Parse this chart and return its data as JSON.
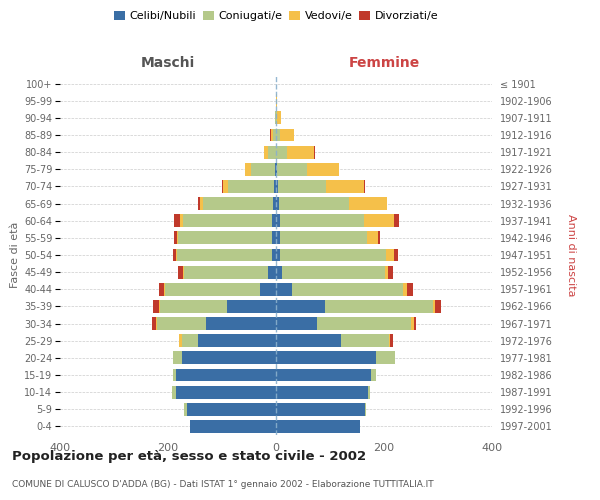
{
  "age_groups": [
    "100+",
    "95-99",
    "90-94",
    "85-89",
    "80-84",
    "75-79",
    "70-74",
    "65-69",
    "60-64",
    "55-59",
    "50-54",
    "45-49",
    "40-44",
    "35-39",
    "30-34",
    "25-29",
    "20-24",
    "15-19",
    "10-14",
    "5-9",
    "0-4"
  ],
  "birth_years": [
    "≤ 1901",
    "1902-1906",
    "1907-1911",
    "1912-1916",
    "1917-1921",
    "1922-1926",
    "1927-1931",
    "1932-1936",
    "1937-1941",
    "1942-1946",
    "1947-1951",
    "1952-1956",
    "1957-1961",
    "1962-1966",
    "1967-1971",
    "1972-1976",
    "1977-1981",
    "1982-1986",
    "1987-1991",
    "1992-1996",
    "1997-2001"
  ],
  "males": {
    "celibi": [
      0,
      0,
      0,
      0,
      0,
      2,
      3,
      5,
      8,
      7,
      8,
      15,
      30,
      90,
      130,
      145,
      175,
      185,
      185,
      165,
      160
    ],
    "coniugati": [
      0,
      0,
      2,
      5,
      15,
      45,
      85,
      130,
      165,
      175,
      175,
      155,
      175,
      125,
      90,
      30,
      15,
      5,
      8,
      5,
      0
    ],
    "vedovi": [
      0,
      0,
      0,
      5,
      8,
      10,
      10,
      5,
      5,
      2,
      2,
      2,
      2,
      2,
      2,
      5,
      0,
      0,
      0,
      0,
      0
    ],
    "divorziati": [
      0,
      0,
      0,
      2,
      0,
      0,
      2,
      5,
      10,
      5,
      5,
      10,
      10,
      10,
      8,
      0,
      0,
      0,
      0,
      0,
      0
    ]
  },
  "females": {
    "nubili": [
      0,
      0,
      0,
      0,
      0,
      2,
      3,
      5,
      8,
      8,
      8,
      12,
      30,
      90,
      75,
      120,
      185,
      175,
      170,
      165,
      155
    ],
    "coniugate": [
      0,
      0,
      2,
      8,
      20,
      55,
      90,
      130,
      155,
      160,
      195,
      190,
      205,
      200,
      175,
      90,
      35,
      10,
      5,
      2,
      0
    ],
    "vedove": [
      0,
      2,
      8,
      25,
      50,
      60,
      70,
      70,
      55,
      20,
      15,
      5,
      8,
      5,
      5,
      2,
      0,
      0,
      0,
      0,
      0
    ],
    "divorziate": [
      0,
      0,
      0,
      0,
      2,
      0,
      2,
      0,
      10,
      5,
      8,
      10,
      10,
      10,
      5,
      5,
      0,
      0,
      0,
      0,
      0
    ]
  },
  "colors": {
    "celibi": "#3a6ea5",
    "coniugati": "#b5c98a",
    "vedovi": "#f5c04a",
    "divorziati": "#c0392b"
  },
  "title": "Popolazione per età, sesso e stato civile - 2002",
  "subtitle": "COMUNE DI CALUSCO D'ADDA (BG) - Dati ISTAT 1° gennaio 2002 - Elaborazione TUTTITALIA.IT",
  "xlabel_left": "Maschi",
  "xlabel_right": "Femmine",
  "ylabel_left": "Fasce di età",
  "ylabel_right": "Anni di nascita",
  "xlim": 400,
  "legend_labels": [
    "Celibi/Nubili",
    "Coniugati/e",
    "Vedovi/e",
    "Divorziati/e"
  ],
  "background_color": "#ffffff",
  "grid_color": "#cccccc"
}
